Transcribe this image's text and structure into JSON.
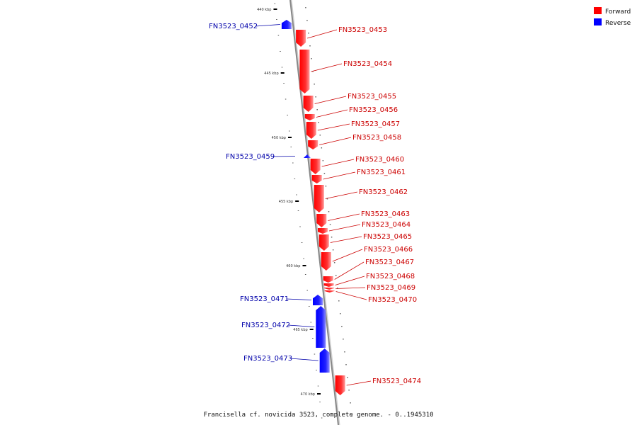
{
  "caption": "Francisella cf. novicida 3523, complete genome. - 0..1945310",
  "legend": [
    {
      "label": "Forward",
      "color": "#ff0000"
    },
    {
      "label": "Reverse",
      "color": "#0000ff"
    }
  ],
  "colors": {
    "forward": "#ff0000",
    "reverse": "#0000ff",
    "forward_label": "#cc0000",
    "reverse_label": "#0000aa",
    "backbone": "#888888"
  },
  "ticks": [
    "440 kbp",
    "445 kbp",
    "450 kbp",
    "455 kbp",
    "460 kbp",
    "465 kbp",
    "470 kbp"
  ],
  "genes": [
    {
      "name": "FN3523_0452",
      "strand": "reverse"
    },
    {
      "name": "FN3523_0453",
      "strand": "forward"
    },
    {
      "name": "FN3523_0454",
      "strand": "forward"
    },
    {
      "name": "FN3523_0455",
      "strand": "forward"
    },
    {
      "name": "FN3523_0456",
      "strand": "forward"
    },
    {
      "name": "FN3523_0457",
      "strand": "forward"
    },
    {
      "name": "FN3523_0458",
      "strand": "forward"
    },
    {
      "name": "FN3523_0459",
      "strand": "reverse"
    },
    {
      "name": "FN3523_0460",
      "strand": "forward"
    },
    {
      "name": "FN3523_0461",
      "strand": "forward"
    },
    {
      "name": "FN3523_0462",
      "strand": "forward"
    },
    {
      "name": "FN3523_0463",
      "strand": "forward"
    },
    {
      "name": "FN3523_0464",
      "strand": "forward"
    },
    {
      "name": "FN3523_0465",
      "strand": "forward"
    },
    {
      "name": "FN3523_0466",
      "strand": "forward"
    },
    {
      "name": "FN3523_0467",
      "strand": "forward"
    },
    {
      "name": "FN3523_0468",
      "strand": "forward"
    },
    {
      "name": "FN3523_0469",
      "strand": "forward"
    },
    {
      "name": "FN3523_0470",
      "strand": "forward"
    },
    {
      "name": "FN3523_0471",
      "strand": "reverse"
    },
    {
      "name": "FN3523_0472",
      "strand": "reverse"
    },
    {
      "name": "FN3523_0473",
      "strand": "reverse"
    },
    {
      "name": "FN3523_0474",
      "strand": "forward"
    }
  ]
}
